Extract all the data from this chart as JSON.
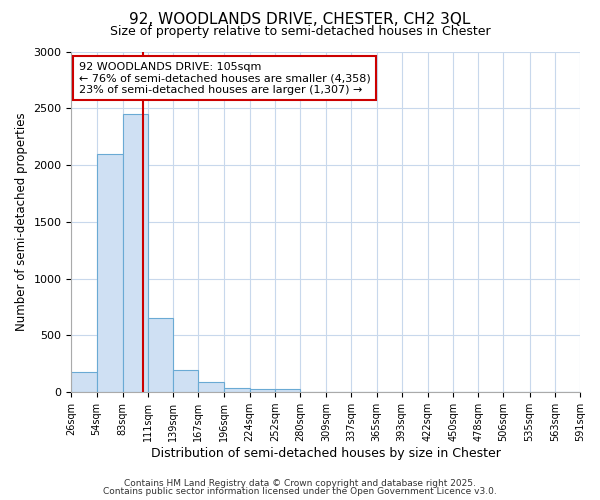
{
  "title1": "92, WOODLANDS DRIVE, CHESTER, CH2 3QL",
  "title2": "Size of property relative to semi-detached houses in Chester",
  "xlabel": "Distribution of semi-detached houses by size in Chester",
  "ylabel": "Number of semi-detached properties",
  "bin_labels": [
    "26sqm",
    "54sqm",
    "83sqm",
    "111sqm",
    "139sqm",
    "167sqm",
    "196sqm",
    "224sqm",
    "252sqm",
    "280sqm",
    "309sqm",
    "337sqm",
    "365sqm",
    "393sqm",
    "422sqm",
    "450sqm",
    "478sqm",
    "506sqm",
    "535sqm",
    "563sqm",
    "591sqm"
  ],
  "bin_edges": [
    26,
    54,
    83,
    111,
    139,
    167,
    196,
    224,
    252,
    280,
    309,
    337,
    365,
    393,
    422,
    450,
    478,
    506,
    535,
    563,
    591
  ],
  "bar_heights": [
    175,
    2100,
    2450,
    650,
    200,
    90,
    40,
    30,
    25,
    0,
    0,
    0,
    0,
    0,
    0,
    0,
    0,
    0,
    0,
    0
  ],
  "bar_color": "#cfe0f3",
  "bar_edge_color": "#6aaad4",
  "property_size": 105,
  "property_label": "92 WOODLANDS DRIVE: 105sqm",
  "pct_smaller": 76,
  "n_smaller": 4358,
  "pct_larger": 23,
  "n_larger": 1307,
  "vline_color": "#cc0000",
  "annotation_box_color": "#cc0000",
  "ylim": [
    0,
    3000
  ],
  "yticks": [
    0,
    500,
    1000,
    1500,
    2000,
    2500,
    3000
  ],
  "fig_bg_color": "#ffffff",
  "plot_bg_color": "#ffffff",
  "grid_color": "#c8d8ec",
  "footer_line1": "Contains HM Land Registry data © Crown copyright and database right 2025.",
  "footer_line2": "Contains public sector information licensed under the Open Government Licence v3.0."
}
